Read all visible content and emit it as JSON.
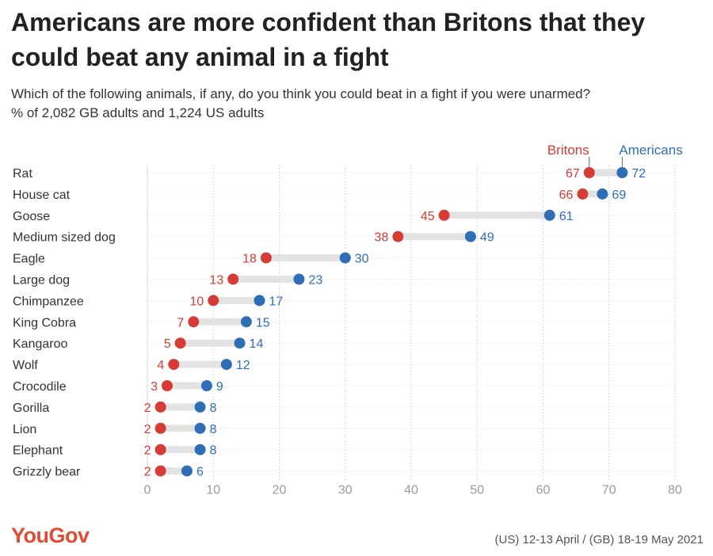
{
  "title": "Americans are more confident than Britons that they could beat any animal in a fight",
  "subtitle": "Which of the following animals, if any, do you think you could beat in a fight if you were unarmed?",
  "subtitle2": "% of 2,082 GB adults and 1,224 US adults",
  "brand": "YouGov",
  "footnote": "(US) 12-13 April / (GB) 18-19 May 2021",
  "colors": {
    "britons": "#d63b35",
    "americans": "#2f6db5",
    "connector": "#e3e3e3",
    "grid": "#d9d9d9",
    "brand": "#e24a33"
  },
  "chart_data": {
    "type": "dumbbell",
    "title": "Americans are more confident than Britons that they could beat any animal in a fight",
    "subtitle": "Which of the following animals, if any, do you think you could beat in a fight if you were unarmed?",
    "xlim": [
      0,
      80
    ],
    "xticks": [
      0,
      10,
      20,
      30,
      40,
      50,
      60,
      70,
      80
    ],
    "grid": true,
    "legend_placement": "top-right",
    "categories": [
      "Rat",
      "House cat",
      "Goose",
      "Medium sized dog",
      "Eagle",
      "Large dog",
      "Chimpanzee",
      "King Cobra",
      "Kangaroo",
      "Wolf",
      "Crocodile",
      "Gorilla",
      "Lion",
      "Elephant",
      "Grizzly bear"
    ],
    "series": [
      {
        "name": "Britons",
        "values": [
          67,
          66,
          45,
          38,
          18,
          13,
          10,
          7,
          5,
          4,
          3,
          2,
          2,
          2,
          2
        ]
      },
      {
        "name": "Americans",
        "values": [
          72,
          69,
          61,
          49,
          30,
          23,
          17,
          15,
          14,
          12,
          9,
          8,
          8,
          8,
          6
        ]
      }
    ]
  }
}
